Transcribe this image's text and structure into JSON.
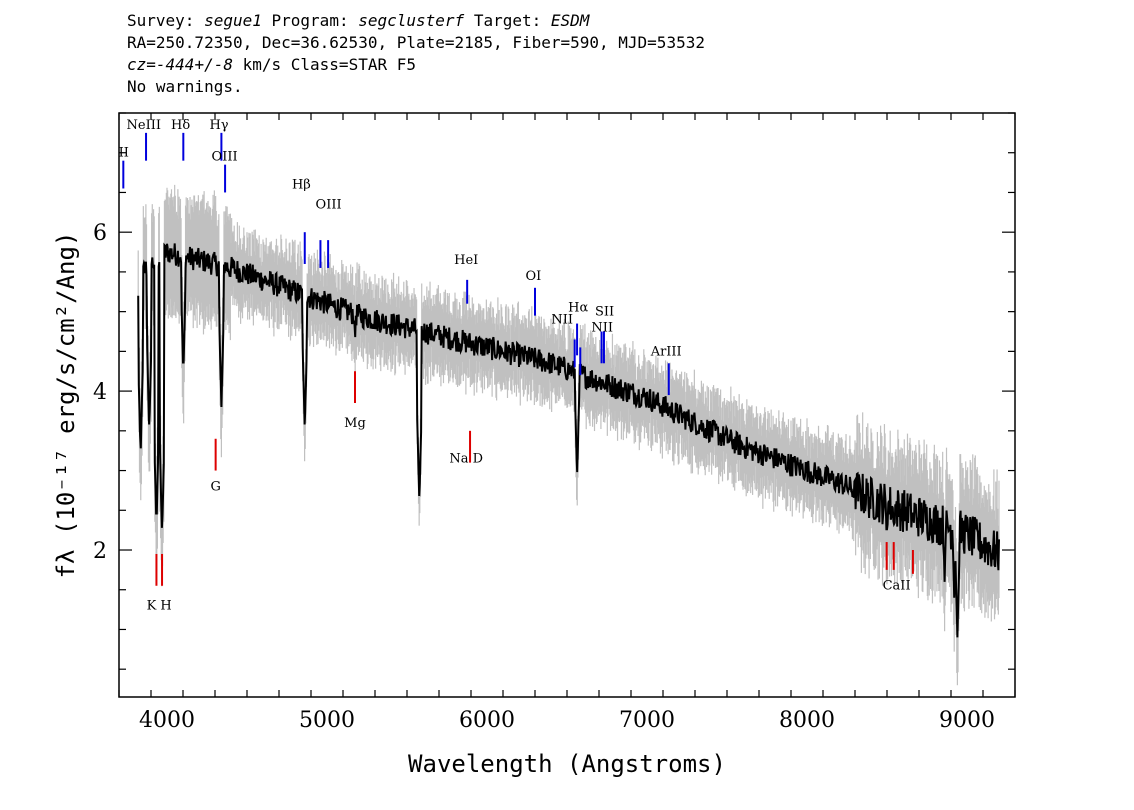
{
  "header": {
    "line1": {
      "survey_label": "Survey:",
      "survey": "segue1",
      "program_label": "Program:",
      "program": "segclusterf",
      "target_label": "Target:",
      "target": "ESDM"
    },
    "line2": "RA=250.72350, Dec=36.62530, Plate=2185, Fiber=590, MJD=53532",
    "line3": {
      "cz_label": "cz=",
      "cz": "-444+/-8",
      "rest": " km/s Class=STAR F5"
    },
    "line4": "No warnings."
  },
  "chart_data": {
    "type": "line",
    "xlabel": "Wavelength (Angstroms)",
    "ylabel": "fλ (10⁻¹⁷ erg/s/cm²/Ang)",
    "xlim": [
      3700,
      9300
    ],
    "ylim": [
      0.15,
      7.5
    ],
    "x_ticks": [
      4000,
      5000,
      6000,
      7000,
      8000,
      9000
    ],
    "y_ticks": [
      2,
      4,
      6
    ],
    "grid": false,
    "colors": {
      "flux": "#000000",
      "error_band": "#c0c0c0",
      "emission": "#0000dd",
      "absorption": "#dd0000"
    },
    "continuum": {
      "x": [
        3820,
        3900,
        4000,
        4100,
        4200,
        4400,
        4600,
        4800,
        5000,
        5200,
        5400,
        5600,
        5800,
        6000,
        6200,
        6400,
        6600,
        6800,
        7000,
        7200,
        7400,
        7600,
        7800,
        8000,
        8200,
        8400,
        8600,
        8800,
        9000,
        9200
      ],
      "y": [
        5.45,
        5.6,
        5.75,
        5.7,
        5.65,
        5.55,
        5.4,
        5.25,
        5.1,
        4.95,
        4.85,
        4.75,
        4.65,
        4.55,
        4.45,
        4.35,
        4.2,
        4.05,
        3.92,
        3.7,
        3.5,
        3.3,
        3.15,
        3.0,
        2.85,
        2.65,
        2.5,
        2.35,
        2.2,
        1.95
      ]
    },
    "absorption_features": [
      {
        "x": 3835,
        "y": 3.2
      },
      {
        "x": 3889,
        "y": 3.5
      },
      {
        "x": 3934,
        "y": 2.3
      },
      {
        "x": 3969,
        "y": 2.2
      },
      {
        "x": 4102,
        "y": 4.2
      },
      {
        "x": 4340,
        "y": 3.8
      },
      {
        "x": 4861,
        "y": 3.5
      },
      {
        "x": 5175,
        "y": 4.6
      },
      {
        "x": 5577,
        "y": 2.6
      },
      {
        "x": 6563,
        "y": 2.9
      },
      {
        "x": 8498,
        "y": 2.1
      },
      {
        "x": 8542,
        "y": 2.2
      },
      {
        "x": 8662,
        "y": 2.3
      },
      {
        "x": 8860,
        "y": 1.6
      },
      {
        "x": 8920,
        "y": 1.4
      },
      {
        "x": 8940,
        "y": 0.9
      }
    ],
    "emission_lines": [
      {
        "label": "OII",
        "x": 3727,
        "y_low": 6.55,
        "y_high": 6.9
      },
      {
        "label": "NeIII",
        "x": 3869,
        "y_low": 6.9,
        "y_high": 7.25
      },
      {
        "label": "Hδ",
        "x": 4102,
        "y_low": 6.9,
        "y_high": 7.25
      },
      {
        "label": "Hγ",
        "x": 4340,
        "y_low": 6.9,
        "y_high": 7.25
      },
      {
        "label": "OIII",
        "x": 4363,
        "y_low": 6.5,
        "y_high": 6.85
      },
      {
        "label": "Hβ",
        "x": 4861,
        "y_low": 5.6,
        "y_high": 6.0
      },
      {
        "label": "OIII",
        "x": 4959,
        "y_low": 5.55,
        "y_high": 5.9
      },
      {
        "label": "OIII",
        "x": 5007,
        "y_low": 5.55,
        "y_high": 5.9
      },
      {
        "label": "HeI",
        "x": 5876,
        "y_low": 5.1,
        "y_high": 5.4
      },
      {
        "label": "OI",
        "x": 6300,
        "y_low": 4.95,
        "y_high": 5.3
      },
      {
        "label": "NII",
        "x": 6548,
        "y_low": 4.3,
        "y_high": 4.65
      },
      {
        "label": "Hα",
        "x": 6563,
        "y_low": 4.45,
        "y_high": 4.85
      },
      {
        "label": "NII",
        "x": 6583,
        "y_low": 4.2,
        "y_high": 4.55
      },
      {
        "label": "SII",
        "x": 6716,
        "y_low": 4.35,
        "y_high": 4.75
      },
      {
        "label": "SII",
        "x": 6731,
        "y_low": 4.35,
        "y_high": 4.75
      },
      {
        "label": "ArIII",
        "x": 7136,
        "y_low": 3.95,
        "y_high": 4.35
      }
    ],
    "absorption_lines": [
      {
        "label": "K",
        "x": 3934,
        "y_low": 1.55,
        "y_high": 1.95
      },
      {
        "label": "H",
        "x": 3969,
        "y_low": 1.55,
        "y_high": 1.95
      },
      {
        "label": "G",
        "x": 4304,
        "y_low": 3.0,
        "y_high": 3.4
      },
      {
        "label": "Mg",
        "x": 5175,
        "y_low": 3.85,
        "y_high": 4.25
      },
      {
        "label": "Na",
        "x": 5894,
        "y_low": 3.1,
        "y_high": 3.5
      },
      {
        "label": "CaII",
        "x": 8498,
        "y_low": 1.75,
        "y_high": 2.1
      },
      {
        "label": "CaII",
        "x": 8542,
        "y_low": 1.75,
        "y_high": 2.1
      },
      {
        "label": "CaII",
        "x": 8662,
        "y_low": 1.7,
        "y_high": 2.0
      }
    ],
    "annotations": [
      {
        "text": "NeIII",
        "x": 3855,
        "y": 7.3
      },
      {
        "text": "Hδ",
        "x": 4085,
        "y": 7.3
      },
      {
        "text": "Hγ",
        "x": 4325,
        "y": 7.3
      },
      {
        "text": "OIII",
        "x": 4360,
        "y": 6.9
      },
      {
        "text": "II",
        "x": 3730,
        "y": 6.95
      },
      {
        "text": "Hβ",
        "x": 4840,
        "y": 6.55
      },
      {
        "text": "OIII",
        "x": 5010,
        "y": 6.3
      },
      {
        "text": "HeI",
        "x": 5870,
        "y": 5.6
      },
      {
        "text": "OI",
        "x": 6290,
        "y": 5.4
      },
      {
        "text": "NII",
        "x": 6470,
        "y": 4.85
      },
      {
        "text": "Hα",
        "x": 6570,
        "y": 5.0
      },
      {
        "text": "SII",
        "x": 6735,
        "y": 4.95
      },
      {
        "text": "NII",
        "x": 6720,
        "y": 4.75
      },
      {
        "text": "ArIII",
        "x": 7120,
        "y": 4.45
      },
      {
        "text": "Mg",
        "x": 5175,
        "y": 3.55
      },
      {
        "text": "G",
        "x": 4304,
        "y": 2.75
      },
      {
        "text": "Na  D",
        "x": 5870,
        "y": 3.1
      },
      {
        "text": "K H",
        "x": 3951,
        "y": 1.25
      },
      {
        "text": "CaII",
        "x": 8560,
        "y": 1.5
      }
    ]
  }
}
